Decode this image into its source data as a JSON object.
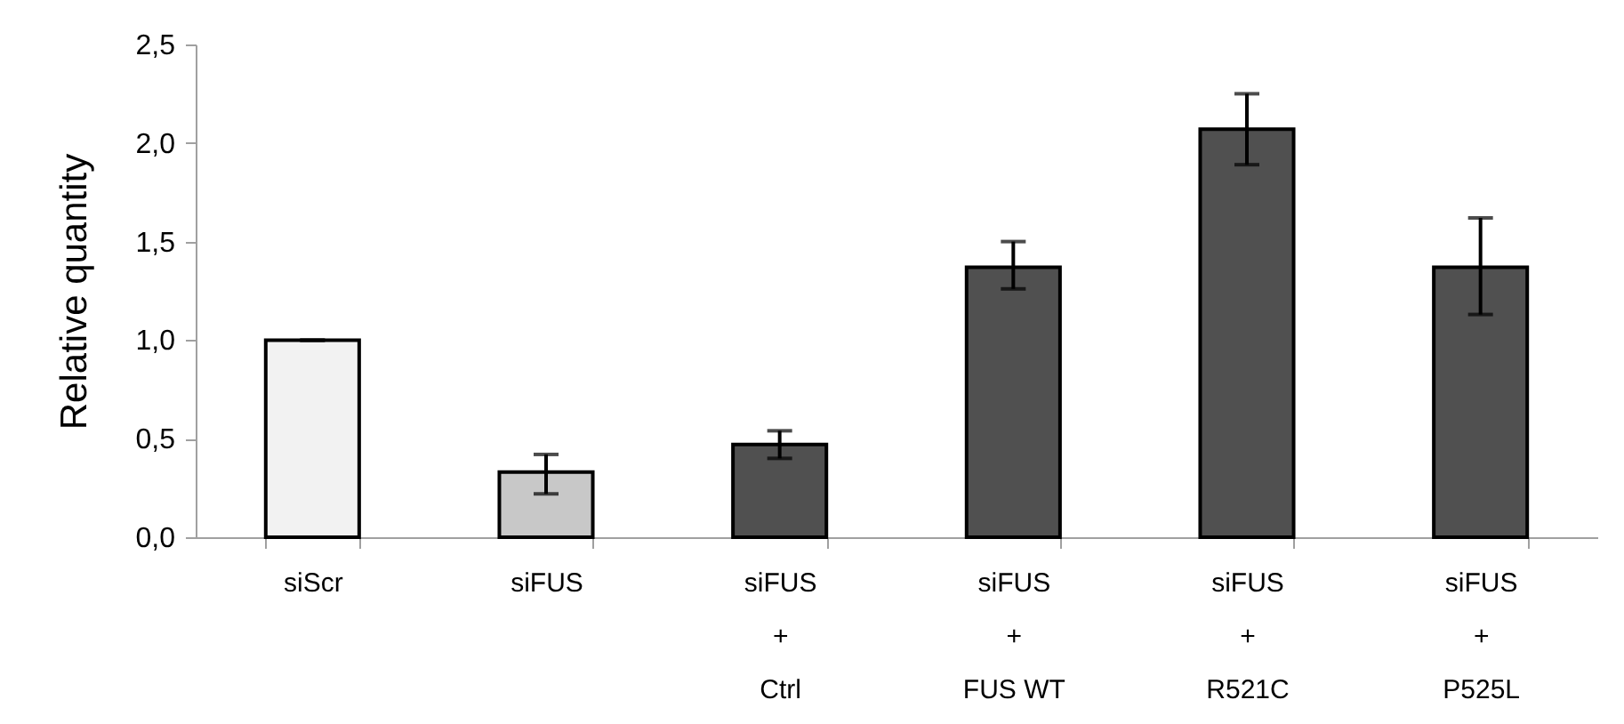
{
  "chart_data": {
    "type": "bar",
    "ylabel": "Relative quantity",
    "categories": [
      "siScr",
      "siFUS",
      "siFUS\n+\nCtrl",
      "siFUS\n+\nFUS WT",
      "siFUS\n+\nR521C",
      "siFUS\n+\nP525L"
    ],
    "values": [
      1.0,
      0.33,
      0.47,
      1.37,
      2.07,
      1.37
    ],
    "colors": [
      "#f2f2f2",
      "#c8c8c8",
      "#505050",
      "#505050",
      "#505050",
      "#505050"
    ],
    "errors": [
      0,
      [
        0.22,
        0.42
      ],
      [
        0.4,
        0.54
      ],
      [
        1.26,
        1.5
      ],
      [
        1.89,
        2.25
      ],
      [
        1.13,
        1.62
      ]
    ],
    "ylim": [
      0,
      2.5
    ],
    "yticks": [
      {
        "value": 0,
        "label": "0,0"
      },
      {
        "value": 0.5,
        "label": "0,5"
      },
      {
        "value": 1,
        "label": "1,0"
      },
      {
        "value": 1.5,
        "label": "1,5"
      },
      {
        "value": 2,
        "label": "2,0"
      },
      {
        "value": 2.5,
        "label": "2,5"
      }
    ],
    "grid": false
  }
}
